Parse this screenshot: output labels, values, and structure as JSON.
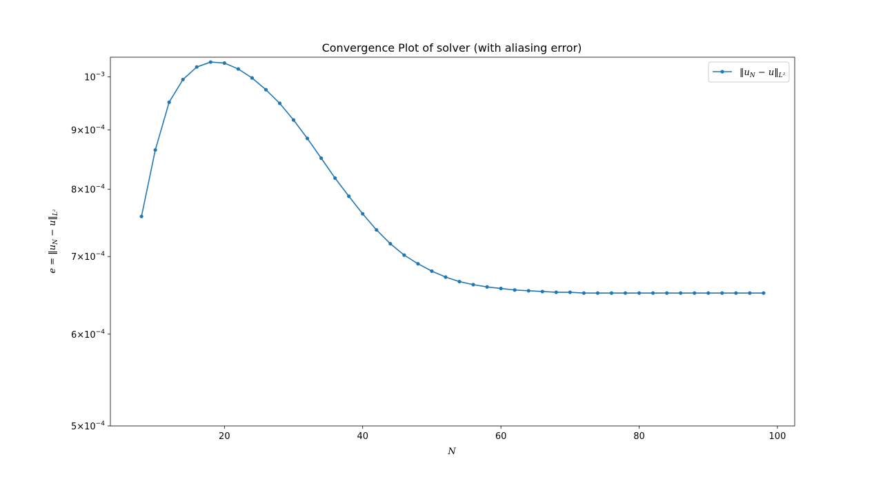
{
  "chart_data": {
    "type": "line",
    "title": "Convergence Plot of solver (with aliasing error)",
    "xlabel": "N",
    "ylabel": "e = ‖u_N − u‖_L²",
    "yscale": "log",
    "xlim": [
      3.5,
      102.5
    ],
    "ylim": [
      0.0005,
      0.00104
    ],
    "x_ticks": [
      20,
      40,
      60,
      80,
      100
    ],
    "y_ticks": [
      {
        "value": 0.0005,
        "base": "5×10",
        "exp": "−4"
      },
      {
        "value": 0.0006,
        "base": "6×10",
        "exp": "−4"
      },
      {
        "value": 0.0007,
        "base": "7×10",
        "exp": "−4"
      },
      {
        "value": 0.0008,
        "base": "8×10",
        "exp": "−4"
      },
      {
        "value": 0.0009,
        "base": "9×10",
        "exp": "−4"
      },
      {
        "value": 0.001,
        "base": "10",
        "exp": "−3"
      }
    ],
    "grid": false,
    "legend_position": "top-right",
    "series": [
      {
        "name": "‖u_N − u‖_L²",
        "color": "#1f77b4",
        "marker": "circle",
        "x": [
          8,
          10,
          12,
          14,
          16,
          18,
          20,
          22,
          24,
          26,
          28,
          30,
          32,
          34,
          36,
          38,
          40,
          42,
          44,
          46,
          48,
          50,
          52,
          54,
          56,
          58,
          60,
          62,
          64,
          66,
          68,
          70,
          72,
          74,
          76,
          78,
          80,
          82,
          84,
          86,
          88,
          90,
          92,
          94,
          96,
          98
        ],
        "y": [
          0.000758,
          0.000865,
          0.000951,
          0.000995,
          0.00102,
          0.00103,
          0.001028,
          0.001016,
          0.000998,
          0.000975,
          0.000949,
          0.000918,
          0.000885,
          0.000851,
          0.000818,
          0.000789,
          0.000762,
          0.000738,
          0.000718,
          0.000702,
          0.00069,
          0.00068,
          0.000672,
          0.000666,
          0.000662,
          0.000659,
          0.000657,
          0.000655,
          0.000654,
          0.000653,
          0.000652,
          0.000652,
          0.000651,
          0.000651,
          0.000651,
          0.000651,
          0.000651,
          0.000651,
          0.000651,
          0.000651,
          0.000651,
          0.000651,
          0.000651,
          0.000651,
          0.000651,
          0.000651
        ]
      }
    ]
  }
}
